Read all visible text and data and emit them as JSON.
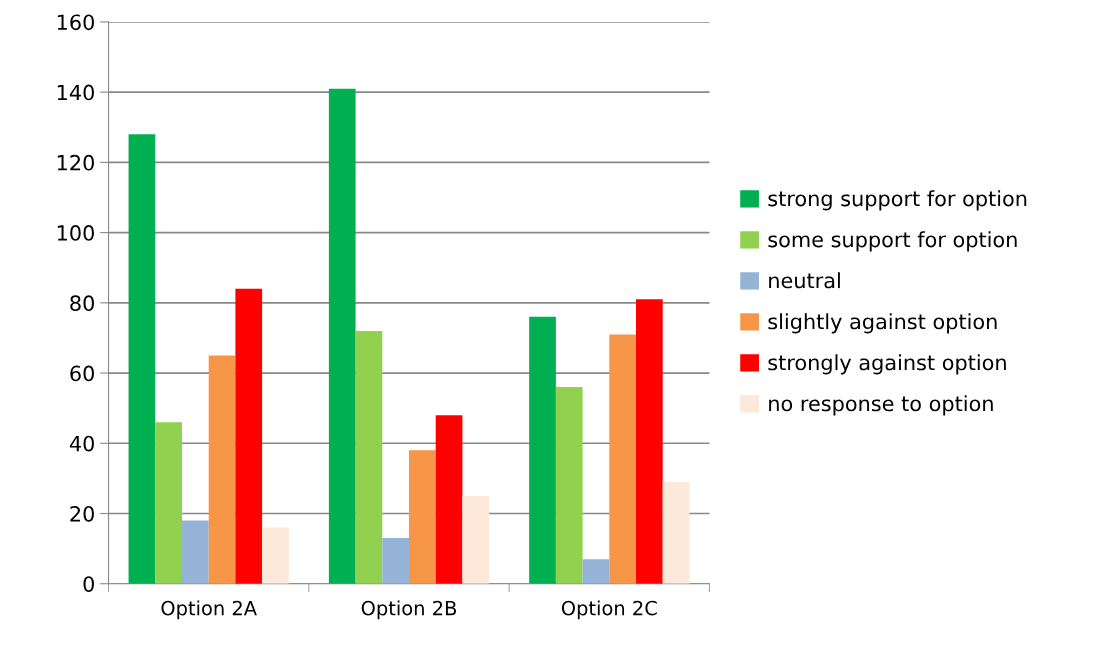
{
  "chart_data": {
    "type": "bar",
    "categories": [
      "Option 2A",
      "Option 2B",
      "Option 2C"
    ],
    "series": [
      {
        "name": "strong support for option",
        "color": "#00b050",
        "values": [
          128,
          141,
          76
        ]
      },
      {
        "name": "some support for option",
        "color": "#92d050",
        "values": [
          46,
          72,
          56
        ]
      },
      {
        "name": "neutral",
        "color": "#95b3d7",
        "values": [
          18,
          13,
          7
        ]
      },
      {
        "name": "slightly against option",
        "color": "#f79646",
        "values": [
          65,
          38,
          71
        ]
      },
      {
        "name": "strongly against option",
        "color": "#ff0000",
        "values": [
          84,
          48,
          81
        ]
      },
      {
        "name": "no response to option",
        "color": "#fde9d9",
        "values": [
          16,
          25,
          29
        ]
      }
    ],
    "ylim": [
      0,
      160
    ],
    "yticks": [
      0,
      20,
      40,
      60,
      80,
      100,
      120,
      140,
      160
    ],
    "grid": "y",
    "legend": "right"
  }
}
